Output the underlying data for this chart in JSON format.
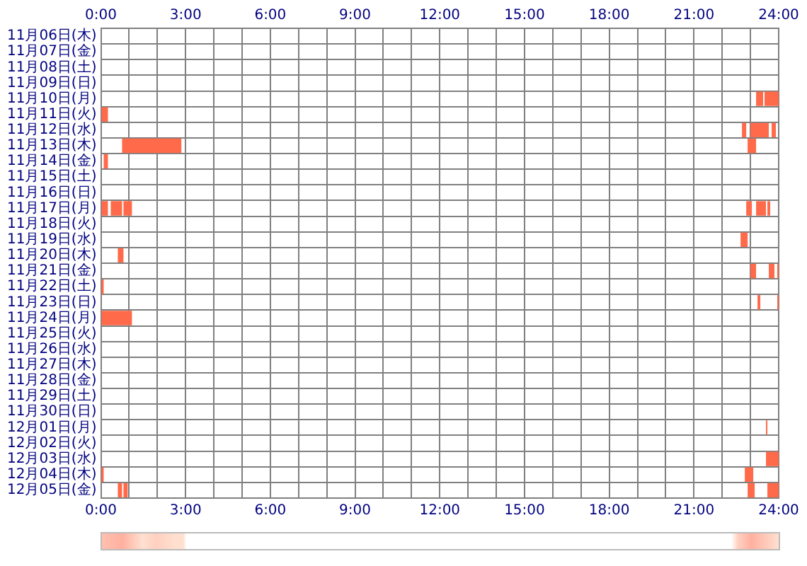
{
  "chart_data": {
    "type": "bar",
    "orientation": "horizontal",
    "categories": [
      "11月06日(木)",
      "11月07日(金)",
      "11月08日(土)",
      "11月09日(日)",
      "11月10日(月)",
      "11月11日(火)",
      "11月12日(水)",
      "11月13日(木)",
      "11月14日(金)",
      "11月15日(土)",
      "11月16日(日)",
      "11月17日(月)",
      "11月18日(火)",
      "11月19日(水)",
      "11月20日(木)",
      "11月21日(金)",
      "11月22日(土)",
      "11月23日(日)",
      "11月24日(月)",
      "11月25日(火)",
      "11月26日(水)",
      "11月27日(木)",
      "11月28日(金)",
      "11月29日(土)",
      "11月30日(日)",
      "12月01日(月)",
      "12月02日(火)",
      "12月03日(水)",
      "12月04日(木)",
      "12月05日(金)"
    ],
    "series": [
      {
        "color": "#ff6a4a",
        "base": [
          null,
          null,
          null,
          null,
          23.2,
          0,
          22.7,
          0.75,
          0.1,
          null,
          null,
          0,
          null,
          22.65,
          0.6,
          23.0,
          0,
          23.25,
          0,
          null,
          null,
          null,
          null,
          null,
          null,
          23.55,
          null,
          23.55,
          0,
          0.6
        ],
        "values": [
          null,
          null,
          null,
          null,
          0.25,
          0.25,
          0.15,
          2.1,
          0.15,
          null,
          null,
          0.25,
          null,
          0.25,
          0.2,
          0.2,
          0.1,
          0.1,
          1.1,
          null,
          null,
          null,
          null,
          null,
          null,
          0.05,
          null,
          0.45,
          0.1,
          0.15
        ]
      },
      {
        "color": "#ff6a4a",
        "base": [
          null,
          null,
          null,
          null,
          23.5,
          null,
          23.0,
          22.9,
          null,
          null,
          null,
          0.35,
          null,
          null,
          null,
          23.65,
          null,
          23.95,
          null,
          null,
          null,
          null,
          null,
          null,
          null,
          null,
          null,
          null,
          22.8,
          0.8
        ],
        "values": [
          null,
          null,
          null,
          null,
          0.5,
          null,
          0.65,
          0.3,
          null,
          null,
          null,
          0.4,
          null,
          null,
          null,
          0.2,
          null,
          0.05,
          null,
          null,
          null,
          null,
          null,
          null,
          null,
          null,
          null,
          null,
          0.3,
          0.15
        ]
      },
      {
        "color": "#ff6a4a",
        "base": [
          null,
          null,
          null,
          null,
          null,
          null,
          23.75,
          null,
          null,
          null,
          null,
          0.8,
          null,
          null,
          null,
          23.95,
          null,
          null,
          null,
          null,
          null,
          null,
          null,
          null,
          null,
          null,
          null,
          null,
          null,
          22.9
        ],
        "values": [
          null,
          null,
          null,
          null,
          null,
          null,
          0.15,
          null,
          null,
          null,
          null,
          0.3,
          null,
          null,
          null,
          0.05,
          null,
          null,
          null,
          null,
          null,
          null,
          null,
          null,
          null,
          null,
          null,
          null,
          null,
          0.25
        ]
      },
      {
        "color": "#ff6a4a",
        "base": [
          null,
          null,
          null,
          null,
          null,
          null,
          null,
          null,
          null,
          null,
          null,
          22.85,
          null,
          null,
          null,
          null,
          null,
          null,
          null,
          null,
          null,
          null,
          null,
          null,
          null,
          null,
          null,
          null,
          null,
          23.6
        ],
        "values": [
          null,
          null,
          null,
          null,
          null,
          null,
          null,
          null,
          null,
          null,
          null,
          0.2,
          null,
          null,
          null,
          null,
          null,
          null,
          null,
          null,
          null,
          null,
          null,
          null,
          null,
          null,
          null,
          null,
          null,
          0.4
        ]
      },
      {
        "color": "#ff6a4a",
        "base": [
          null,
          null,
          null,
          null,
          null,
          null,
          null,
          null,
          null,
          null,
          null,
          23.2,
          null,
          null,
          null,
          null,
          null,
          null,
          null,
          null,
          null,
          null,
          null,
          null,
          null,
          null,
          null,
          null,
          null,
          null
        ],
        "values": [
          null,
          null,
          null,
          null,
          null,
          null,
          null,
          null,
          null,
          null,
          null,
          0.35,
          null,
          null,
          null,
          null,
          null,
          null,
          null,
          null,
          null,
          null,
          null,
          null,
          null,
          null,
          null,
          null,
          null,
          null
        ]
      },
      {
        "color": "#ff6a4a",
        "base": [
          null,
          null,
          null,
          null,
          null,
          null,
          null,
          null,
          null,
          null,
          null,
          23.6,
          null,
          null,
          null,
          null,
          null,
          null,
          null,
          null,
          null,
          null,
          null,
          null,
          null,
          null,
          null,
          null,
          null,
          null
        ],
        "values": [
          null,
          null,
          null,
          null,
          null,
          null,
          null,
          null,
          null,
          null,
          null,
          0.1,
          null,
          null,
          null,
          null,
          null,
          null,
          null,
          null,
          null,
          null,
          null,
          null,
          null,
          null,
          null,
          null,
          null,
          null
        ]
      }
    ],
    "xlim": [
      0,
      24
    ],
    "xticks": [
      {
        "value": 0,
        "label": "0:00"
      },
      {
        "value": 1,
        "label": null
      },
      {
        "value": 2,
        "label": null
      },
      {
        "value": 3,
        "label": "3:00"
      },
      {
        "value": 4,
        "label": null
      },
      {
        "value": 5,
        "label": null
      },
      {
        "value": 6,
        "label": "6:00"
      },
      {
        "value": 7,
        "label": null
      },
      {
        "value": 8,
        "label": null
      },
      {
        "value": 9,
        "label": "9:00"
      },
      {
        "value": 10,
        "label": null
      },
      {
        "value": 11,
        "label": null
      },
      {
        "value": 12,
        "label": "12:00"
      },
      {
        "value": 13,
        "label": null
      },
      {
        "value": 14,
        "label": null
      },
      {
        "value": 15,
        "label": "15:00"
      },
      {
        "value": 16,
        "label": null
      },
      {
        "value": 17,
        "label": null
      },
      {
        "value": 18,
        "label": "18:00"
      },
      {
        "value": 19,
        "label": null
      },
      {
        "value": 20,
        "label": null
      },
      {
        "value": 21,
        "label": "21:00"
      },
      {
        "value": 22,
        "label": null
      },
      {
        "value": 23,
        "label": null
      },
      {
        "value": 24,
        "label": "24:00"
      }
    ],
    "x2lim": [
      0,
      24
    ],
    "x2ticks": [
      {
        "value": 0,
        "label": "0:00"
      },
      {
        "value": 1,
        "label": null
      },
      {
        "value": 2,
        "label": null
      },
      {
        "value": 3,
        "label": "3:00"
      },
      {
        "value": 4,
        "label": null
      },
      {
        "value": 5,
        "label": null
      },
      {
        "value": 6,
        "label": "6:00"
      },
      {
        "value": 7,
        "label": null
      },
      {
        "value": 8,
        "label": null
      },
      {
        "value": 9,
        "label": "9:00"
      },
      {
        "value": 10,
        "label": null
      },
      {
        "value": 11,
        "label": null
      },
      {
        "value": 12,
        "label": "12:00"
      },
      {
        "value": 13,
        "label": null
      },
      {
        "value": 14,
        "label": null
      },
      {
        "value": 15,
        "label": "15:00"
      },
      {
        "value": 16,
        "label": null
      },
      {
        "value": 17,
        "label": null
      },
      {
        "value": 18,
        "label": "18:00"
      },
      {
        "value": 19,
        "label": null
      },
      {
        "value": 20,
        "label": null
      },
      {
        "value": 21,
        "label": "21:00"
      },
      {
        "value": 22,
        "label": null
      },
      {
        "value": 23,
        "label": null
      },
      {
        "value": 24,
        "label": "24:00"
      }
    ],
    "grid": true,
    "legend": false
  }
}
